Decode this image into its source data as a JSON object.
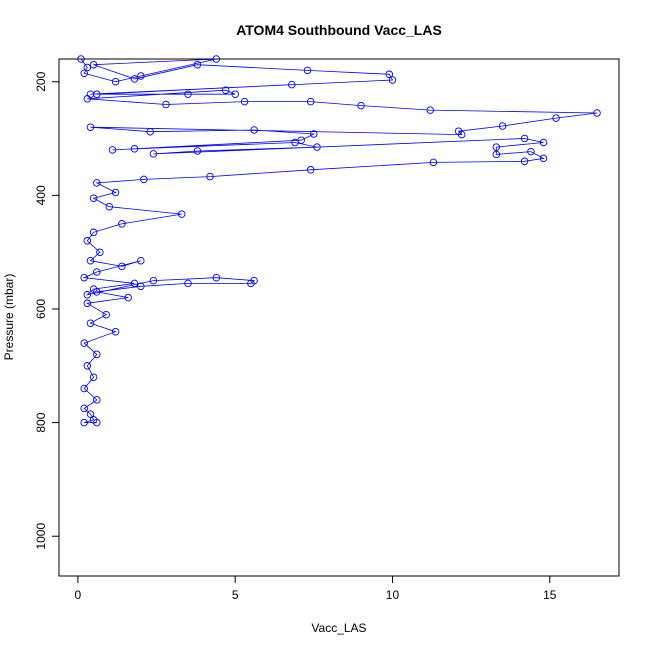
{
  "chart_data": {
    "type": "line",
    "title": "ATOM4 Southbound Vacc_LAS",
    "xlabel": "Vacc_LAS",
    "ylabel": "Pressure (mbar)",
    "xlim": [
      -0.6,
      17.2
    ],
    "ylim": [
      1070,
      160
    ],
    "y_inverted": true,
    "x_ticks": [
      0,
      5,
      10,
      15
    ],
    "y_ticks": [
      200,
      400,
      600,
      800,
      1000
    ],
    "grid": false,
    "legend": "none",
    "series": [
      {
        "color": "#0000ff",
        "marker": "open-circle",
        "x": [
          0.1,
          0.3,
          0.2,
          1.2,
          2.0,
          4.4,
          0.5,
          1.8,
          3.8,
          7.3,
          9.9,
          10.0,
          0.4,
          6.8,
          0.6,
          3.5,
          5.0,
          4.7,
          0.3,
          2.8,
          5.3,
          7.4,
          9.0,
          11.2,
          16.5,
          15.2,
          13.5,
          12.1,
          12.2,
          0.4,
          2.3,
          5.6,
          7.5,
          7.1,
          1.1,
          1.8,
          6.9,
          7.6,
          3.8,
          2.4,
          14.2,
          14.8,
          13.3,
          13.3,
          14.4,
          14.8,
          14.2,
          11.3,
          7.4,
          4.2,
          2.1,
          0.6,
          1.2,
          0.5,
          1.0,
          3.3,
          1.4,
          0.5,
          0.3,
          0.7,
          0.4,
          1.4,
          2.0,
          0.6,
          0.2,
          1.8,
          0.5,
          0.3,
          2.4,
          4.4,
          5.6,
          5.5,
          3.5,
          2.0,
          0.6,
          1.6,
          0.3,
          0.9,
          0.4,
          1.2,
          0.2,
          0.6,
          0.3,
          0.5,
          0.2,
          0.6,
          0.2,
          0.4,
          0.5,
          0.2,
          0.6
        ],
        "y": [
          160,
          175,
          185,
          200,
          190,
          160,
          170,
          195,
          170,
          180,
          187,
          197,
          222,
          205,
          222,
          222,
          222,
          215,
          230,
          240,
          235,
          235,
          242,
          250,
          255,
          264,
          278,
          287,
          293,
          280,
          288,
          285,
          292,
          303,
          320,
          318,
          307,
          315,
          322,
          327,
          300,
          307,
          315,
          328,
          323,
          335,
          340,
          342,
          355,
          367,
          372,
          378,
          395,
          405,
          420,
          433,
          450,
          465,
          480,
          500,
          515,
          525,
          515,
          535,
          545,
          555,
          565,
          575,
          550,
          545,
          550,
          555,
          555,
          560,
          570,
          580,
          590,
          610,
          625,
          640,
          660,
          680,
          700,
          720,
          740,
          760,
          775,
          785,
          795,
          800,
          800
        ]
      }
    ]
  }
}
